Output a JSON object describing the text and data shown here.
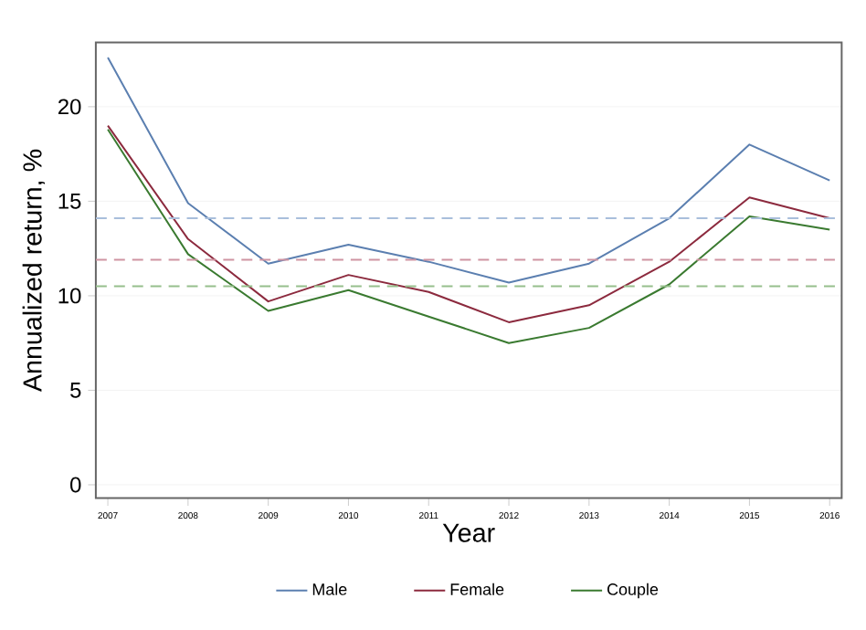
{
  "chart_data": {
    "type": "line",
    "xlabel": "Year",
    "ylabel": "Annualized return, %",
    "x": [
      2007,
      2008,
      2009,
      2010,
      2011,
      2012,
      2013,
      2014,
      2015,
      2016
    ],
    "series": [
      {
        "name": "Male",
        "color": "#5b7fb0",
        "values": [
          22.6,
          14.9,
          11.7,
          12.7,
          11.8,
          10.7,
          11.7,
          14.1,
          18.0,
          16.1
        ]
      },
      {
        "name": "Female",
        "color": "#8c2a3e",
        "values": [
          19.0,
          13.0,
          9.7,
          11.1,
          10.2,
          8.6,
          9.5,
          11.8,
          15.2,
          14.1
        ]
      },
      {
        "name": "Couple",
        "color": "#3a7a30",
        "values": [
          18.8,
          12.2,
          9.2,
          10.3,
          8.9,
          7.5,
          8.3,
          10.6,
          14.2,
          13.5
        ]
      }
    ],
    "ref_lines": [
      {
        "axis": "y",
        "value": 14.1,
        "color": "#a9bedb",
        "line_style": "dashed"
      },
      {
        "axis": "y",
        "value": 11.9,
        "color": "#cf94a2",
        "line_style": "dashed"
      },
      {
        "axis": "y",
        "value": 10.5,
        "color": "#96bf8c",
        "line_style": "dashed"
      }
    ],
    "xlim": [
      2006.85,
      2016.15
    ],
    "ylim": [
      -0.7,
      23.4
    ],
    "xticks": [
      2007,
      2008,
      2009,
      2010,
      2011,
      2012,
      2013,
      2014,
      2015,
      2016
    ],
    "yticks": [
      0,
      5,
      10,
      15,
      20
    ],
    "grid": "y",
    "legend": "bottom",
    "marker": "none",
    "line_style": "solid"
  }
}
